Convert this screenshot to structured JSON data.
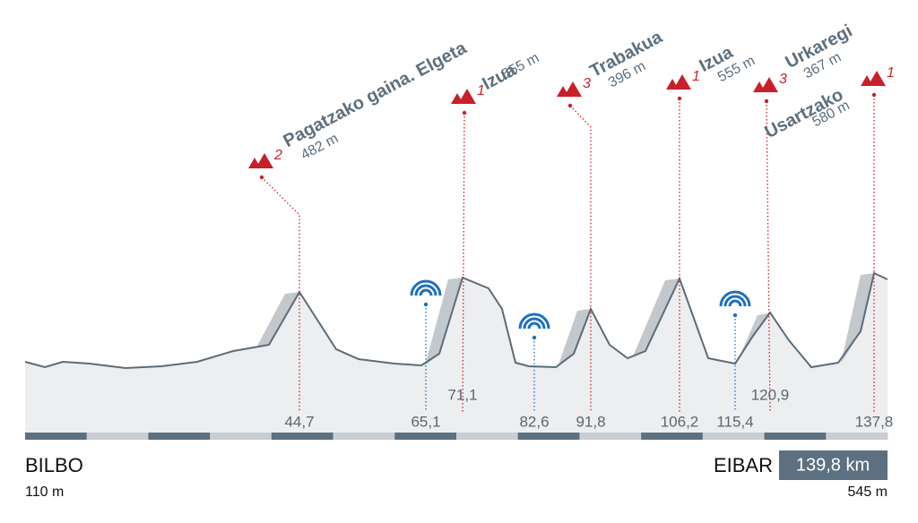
{
  "start": {
    "name": "BILBO",
    "altitude": "110 m"
  },
  "finish": {
    "name": "EIBAR",
    "altitude": "545 m",
    "distance": "139,8 km"
  },
  "climbs": [
    {
      "name": "Pagatzako gaina. Elgeta",
      "category": "2",
      "altitude": "482 m",
      "km": "44,7"
    },
    {
      "name": "Izua",
      "category": "1",
      "altitude": "555 m",
      "km": "71,1"
    },
    {
      "name": "Trabakua",
      "category": "3",
      "altitude": "396 m",
      "km": "91,8"
    },
    {
      "name": "Izua",
      "category": "1",
      "altitude": "555 m",
      "km": "106,2"
    },
    {
      "name": "Urkaregi",
      "category": "3",
      "altitude": "367 m",
      "km": "120,9"
    },
    {
      "name": "Usartzako",
      "category": "1",
      "altitude": "580 m",
      "km": "137,8"
    }
  ],
  "sprints": [
    {
      "km": "65,1"
    },
    {
      "km": "82,6"
    },
    {
      "km": "115,4"
    }
  ]
}
